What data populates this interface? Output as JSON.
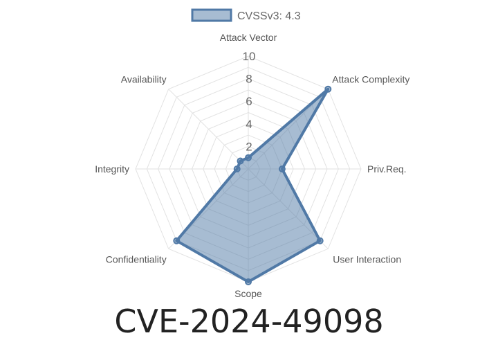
{
  "chart_data": {
    "type": "radar",
    "axes": [
      "Attack Vector",
      "Attack Complexity",
      "Priv.Req.",
      "User Interaction",
      "Scope",
      "Confidentiality",
      "Integrity",
      "Availability"
    ],
    "series": [
      {
        "name": "CVSSv3: 4.3",
        "values": [
          1,
          10,
          3,
          9,
          10,
          9,
          1,
          1
        ],
        "color": "#4e79a7"
      }
    ],
    "rlim": [
      0,
      10
    ],
    "ticks": [
      2,
      4,
      6,
      8,
      10
    ],
    "grid": true,
    "legend": "top-center"
  },
  "title": "CVE-2024-49098",
  "colors": {
    "series_stroke": "#5079a6",
    "series_fill": "rgba(80,121,166,0.5)",
    "grid": "#e2e2e2"
  }
}
